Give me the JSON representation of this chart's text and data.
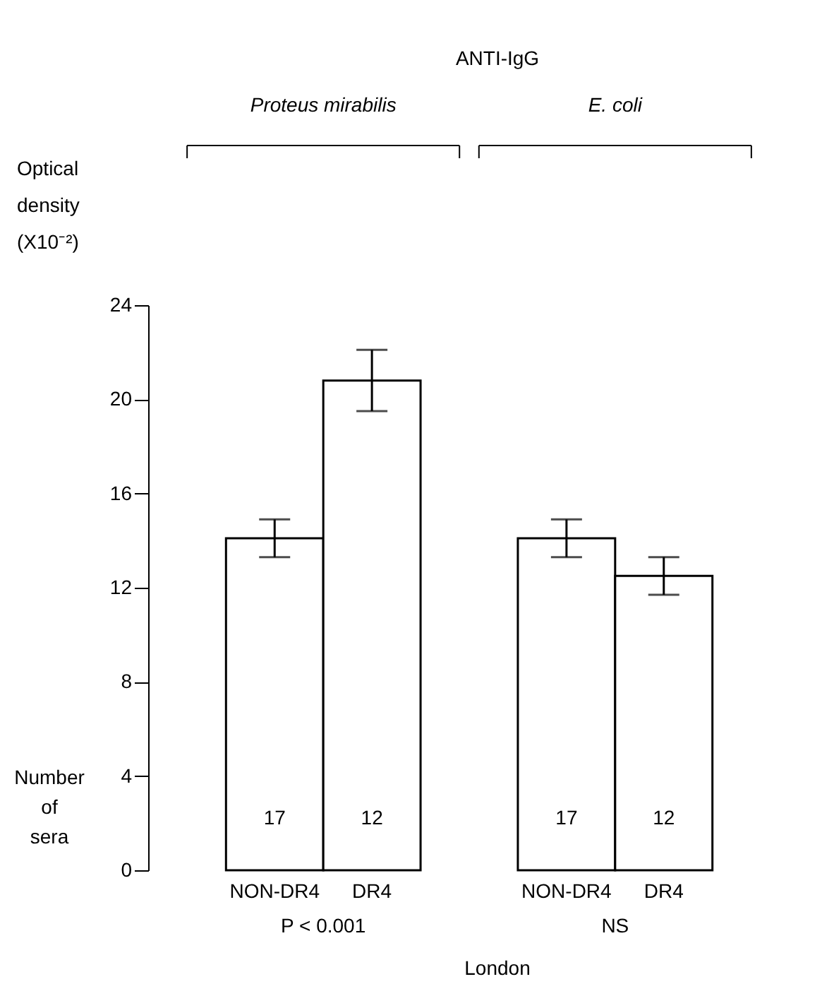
{
  "chart_data": {
    "type": "bar",
    "title": "ANTI-IgG",
    "ylabel": "Optical density (X10⁻²)",
    "xlabel": "London",
    "categories": [
      "NON-DR4",
      "DR4",
      null,
      "NON-DR4",
      "DR4"
    ],
    "values": [
      14.1,
      20.8,
      null,
      14.1,
      12.5
    ],
    "errors": [
      0.8,
      1.3,
      null,
      0.8,
      0.8
    ],
    "color": "#ffffff",
    "ylim": [
      0,
      24
    ],
    "yticks": [
      0,
      4,
      8,
      12,
      16,
      20,
      24
    ],
    "grid": false,
    "annotations": [
      "Proteus mirabilis",
      "E. coli",
      "P < 0.001",
      "NS",
      "Number of sera",
      "17",
      "12",
      "17",
      "12"
    ]
  }
}
